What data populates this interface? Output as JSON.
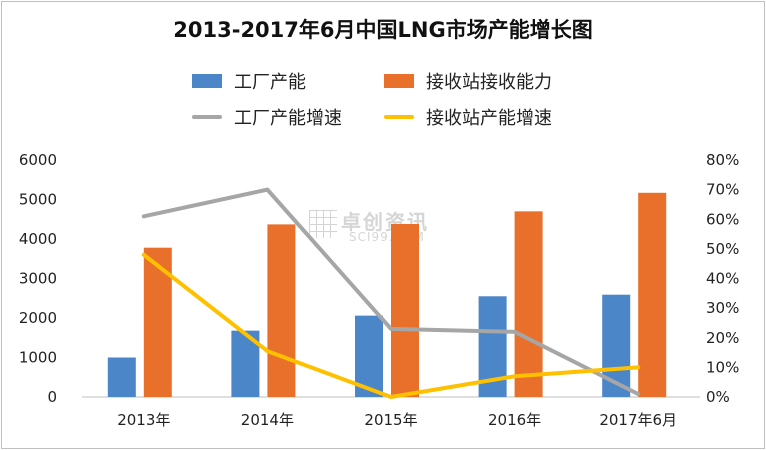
{
  "chart_data": {
    "type": "bar",
    "title": "2013-2017年6月中国LNG市场产能增长图",
    "categories": [
      "2013年",
      "2014年",
      "2015年",
      "2016年",
      "2017年6月"
    ],
    "bar_series": [
      {
        "name": "工厂产能",
        "color": "#4a86c8",
        "values": [
          1000,
          1680,
          2060,
          2550,
          2590
        ]
      },
      {
        "name": "接收站接收能力",
        "color": "#e8702a",
        "values": [
          3780,
          4370,
          4380,
          4700,
          5170
        ]
      }
    ],
    "line_series": [
      {
        "name": "工厂产能增速",
        "color": "#a6a6a6",
        "axis": "right",
        "values": [
          0.61,
          0.7,
          0.23,
          0.22,
          0.01
        ]
      },
      {
        "name": "接收站产能增速",
        "color": "#ffc000",
        "axis": "right",
        "values": [
          0.48,
          0.155,
          0.0,
          0.07,
          0.1
        ]
      }
    ],
    "y_left": {
      "range": [
        0,
        6000
      ],
      "ticks": [
        "0",
        "1000",
        "2000",
        "3000",
        "4000",
        "5000",
        "6000"
      ]
    },
    "y_right": {
      "range": [
        0,
        0.8
      ],
      "ticks": [
        "0%",
        "10%",
        "20%",
        "30%",
        "40%",
        "50%",
        "60%",
        "70%",
        "80%"
      ]
    },
    "grid": false,
    "legend_position": "top"
  },
  "watermark": {
    "cn": "卓创资讯",
    "en": "SCI99.COM"
  }
}
